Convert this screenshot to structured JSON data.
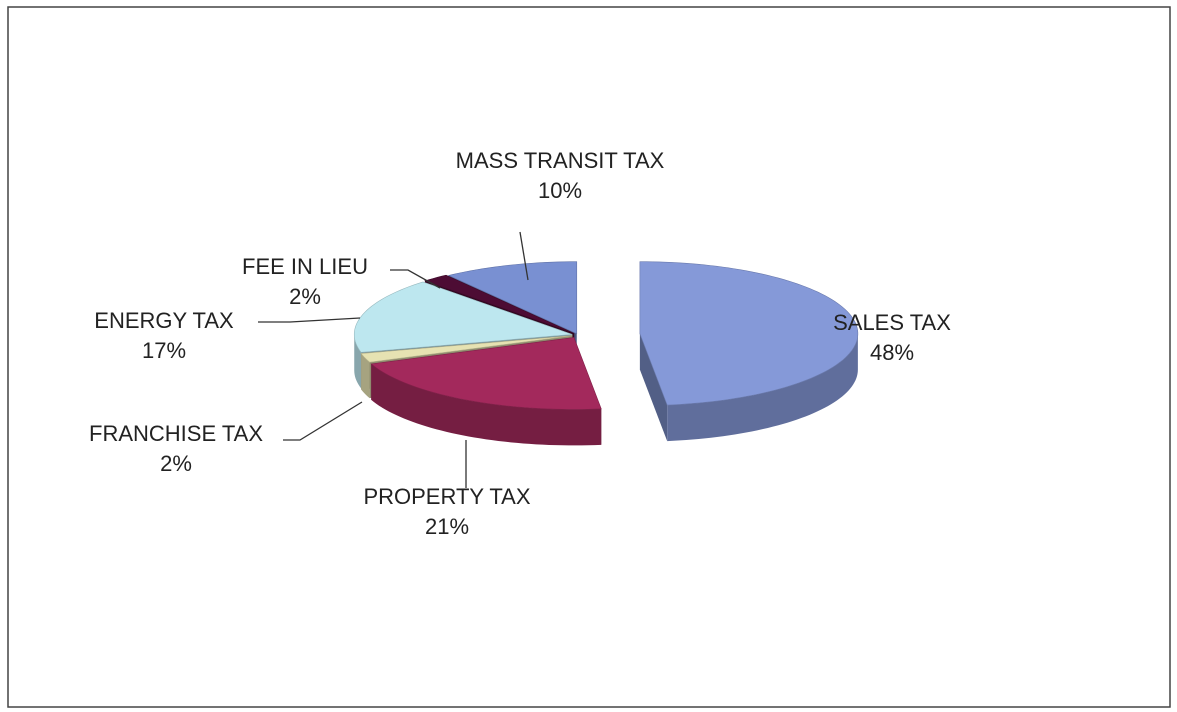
{
  "chart_data": {
    "type": "pie",
    "categories": [
      "SALES TAX",
      "PROPERTY TAX",
      "FRANCHISE TAX",
      "ENERGY TAX",
      "FEE IN LIEU",
      "MASS TRANSIT TAX"
    ],
    "values": [
      48,
      21,
      2,
      17,
      2,
      10
    ],
    "value_labels": [
      "48%",
      "21%",
      "2%",
      "17%",
      "2%",
      "10%"
    ],
    "colors": [
      "#8599d8",
      "#a3295c",
      "#e6e2b2",
      "#bde7ef",
      "#4d0c34",
      "#7990d2"
    ]
  }
}
